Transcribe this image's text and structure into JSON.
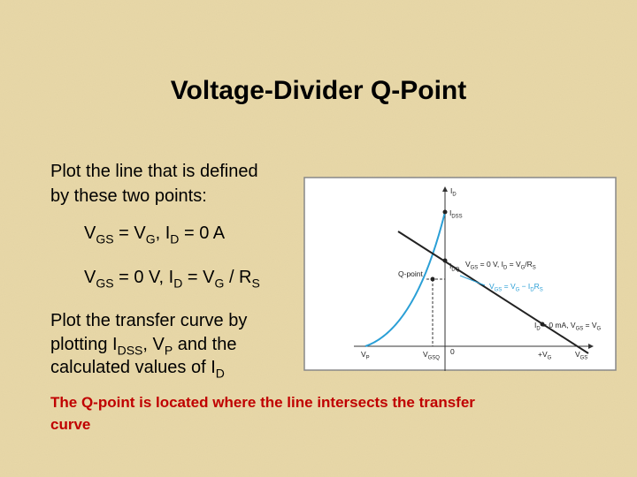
{
  "title": "Voltage-Divider Q-Point",
  "body": {
    "intro": [
      [
        "Plot the line that is defined"
      ],
      [
        "by these two points:"
      ]
    ],
    "points": [
      [
        "V",
        {
          "sub": "GS"
        },
        " = V",
        {
          "sub": "G"
        },
        ", I",
        {
          "sub": "D"
        },
        " = 0 A"
      ],
      [
        "V",
        {
          "sub": "GS"
        },
        " = 0 V, I",
        {
          "sub": "D"
        },
        " = V",
        {
          "sub": "G"
        },
        " / R",
        {
          "sub": "S"
        }
      ]
    ],
    "transfer": [
      [
        "Plot the transfer curve by"
      ],
      [
        "plotting I",
        {
          "sub": "DSS"
        },
        ", V",
        {
          "sub": "P"
        },
        " and the"
      ],
      [
        "calculated values of I",
        {
          "sub": "D"
        }
      ]
    ]
  },
  "note": [
    [
      "The Q-point is located where the line intersects the transfer"
    ],
    [
      "curve"
    ]
  ],
  "diagram": {
    "labels": [
      [
        "I",
        {
          "sub": "D"
        }
      ],
      [
        "I",
        {
          "sub": "DSS"
        }
      ],
      [
        "Q-point"
      ],
      [
        "I",
        {
          "sub": "DQ"
        }
      ],
      [
        "V",
        {
          "sub": "GS"
        },
        " = 0 V, I",
        {
          "sub": "D"
        },
        " = V",
        {
          "sub": "G"
        },
        "/R",
        {
          "sub": "S"
        }
      ],
      [
        "V",
        {
          "sub": "GS"
        },
        " = V",
        {
          "sub": "G"
        },
        " − I",
        {
          "sub": "D"
        },
        "R",
        {
          "sub": "S"
        }
      ],
      [
        "I",
        {
          "sub": "D"
        },
        " = 0 mA, V",
        {
          "sub": "GS"
        },
        " = V",
        {
          "sub": "G"
        }
      ],
      [
        "V",
        {
          "sub": "P"
        }
      ],
      [
        "V",
        {
          "sub": "GSQ"
        }
      ],
      [
        "0"
      ],
      [
        "+V",
        {
          "sub": "G"
        }
      ],
      [
        "V",
        {
          "sub": "GS"
        }
      ]
    ]
  }
}
